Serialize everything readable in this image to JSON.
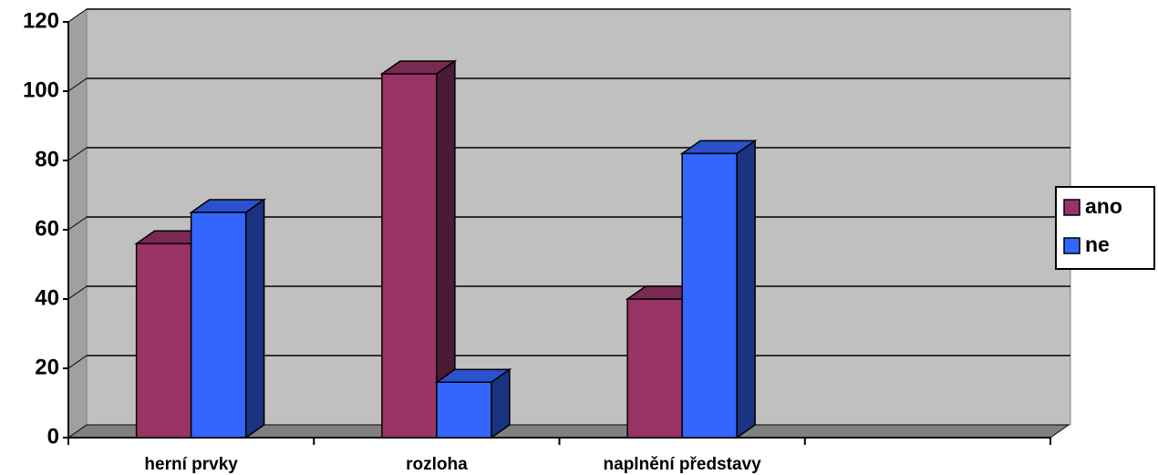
{
  "chart_data": {
    "type": "bar3d",
    "categories": [
      "herní prvky",
      "rozloha",
      "naplnění představy",
      null
    ],
    "series": [
      {
        "name": "ano",
        "color": "#993366",
        "values": [
          56,
          105,
          40,
          null
        ]
      },
      {
        "name": "ne",
        "color": "#3366ff",
        "values": [
          65,
          16,
          82,
          null
        ]
      }
    ],
    "ylim": [
      0,
      120
    ],
    "yticks": [
      0,
      20,
      40,
      60,
      80,
      100,
      120
    ],
    "grid": true,
    "legend": "right"
  }
}
